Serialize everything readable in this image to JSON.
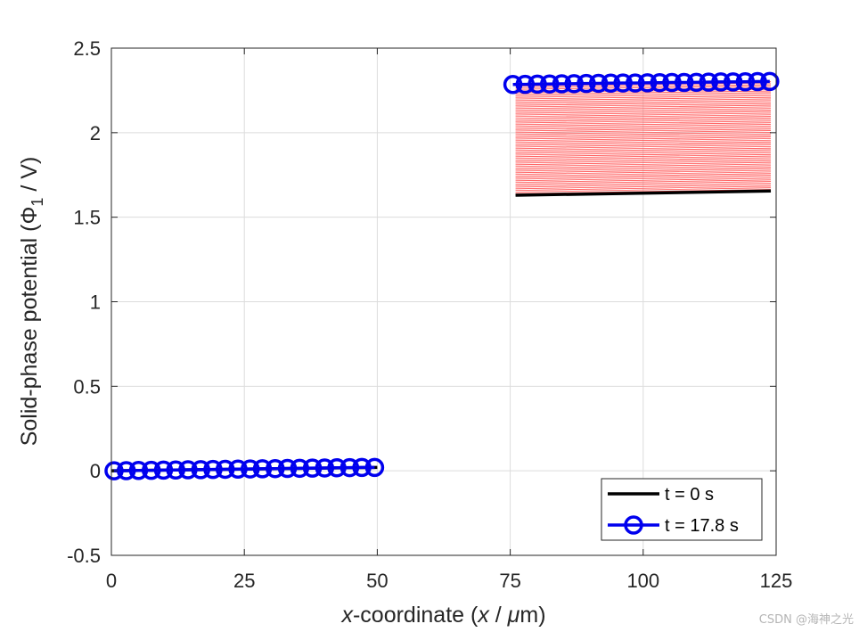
{
  "chart_data": {
    "type": "line",
    "title": "",
    "xlabel": {
      "italic": "x",
      "text": "-coordinate (",
      "italic2": "x",
      "text2": " / ",
      "mu": "μ",
      "text3": "m)"
    },
    "ylabel": {
      "text": "Solid-phase potential (",
      "phi": "Φ",
      "sub": "1",
      "text2": " / V)"
    },
    "xlim": [
      0,
      125
    ],
    "ylim": [
      -0.5,
      2.5
    ],
    "xticks": [
      0,
      25,
      50,
      75,
      100,
      125
    ],
    "yticks": [
      -0.5,
      0,
      0.5,
      1,
      1.5,
      2,
      2.5
    ],
    "xtick_labels": [
      "0",
      "25",
      "50",
      "75",
      "100",
      "125"
    ],
    "ytick_labels": [
      "-0.5",
      "0",
      "0.5",
      "1",
      "1.5",
      "2",
      "2.5"
    ],
    "grid": true,
    "legend": {
      "position": "bottom-right",
      "entries": [
        "t = 0 s",
        "t = 17.8 s"
      ]
    },
    "colors": {
      "initial": "#000000",
      "final": "#0000ee",
      "intermediate": "#ff4d4d"
    },
    "series": [
      {
        "name": "t = 0 s",
        "segments": [
          {
            "x": [
              0,
              50
            ],
            "y": [
              0,
              0.02
            ]
          },
          {
            "x": [
              76,
              124
            ],
            "y": [
              1.63,
              1.655
            ]
          }
        ]
      },
      {
        "name": "t = 17.8 s",
        "marker": "circle",
        "segments": [
          {
            "x": [
              0.5,
              2.8,
              5.1,
              7.5,
              9.8,
              12.1,
              14.4,
              16.8,
              19.1,
              21.4,
              23.8,
              26.1,
              28.4,
              30.8,
              33.1,
              35.4,
              37.8,
              40.1,
              42.4,
              44.8,
              47.1,
              49.5
            ],
            "y": [
              0.0,
              0.001,
              0.002,
              0.003,
              0.004,
              0.005,
              0.006,
              0.007,
              0.008,
              0.009,
              0.01,
              0.011,
              0.012,
              0.013,
              0.014,
              0.015,
              0.016,
              0.017,
              0.018,
              0.019,
              0.02,
              0.02
            ]
          },
          {
            "x": [
              75.5,
              77.8,
              80.1,
              82.4,
              84.7,
              87.0,
              89.3,
              91.6,
              93.9,
              96.2,
              98.5,
              100.8,
              103.1,
              105.4,
              107.7,
              110.0,
              112.3,
              114.6,
              116.9,
              119.2,
              121.5,
              123.8
            ],
            "y": [
              2.285,
              2.286,
              2.287,
              2.288,
              2.289,
              2.29,
              2.291,
              2.292,
              2.293,
              2.294,
              2.294,
              2.295,
              2.296,
              2.297,
              2.297,
              2.298,
              2.299,
              2.3,
              2.3,
              2.301,
              2.302,
              2.303
            ]
          }
        ]
      }
    ],
    "intermediate_curves": {
      "x_range": [
        76,
        124
      ],
      "y_left_range": [
        1.63,
        2.285
      ],
      "y_right_range": [
        1.655,
        2.303
      ],
      "count": 70
    }
  },
  "watermark": "CSDN @海神之光"
}
